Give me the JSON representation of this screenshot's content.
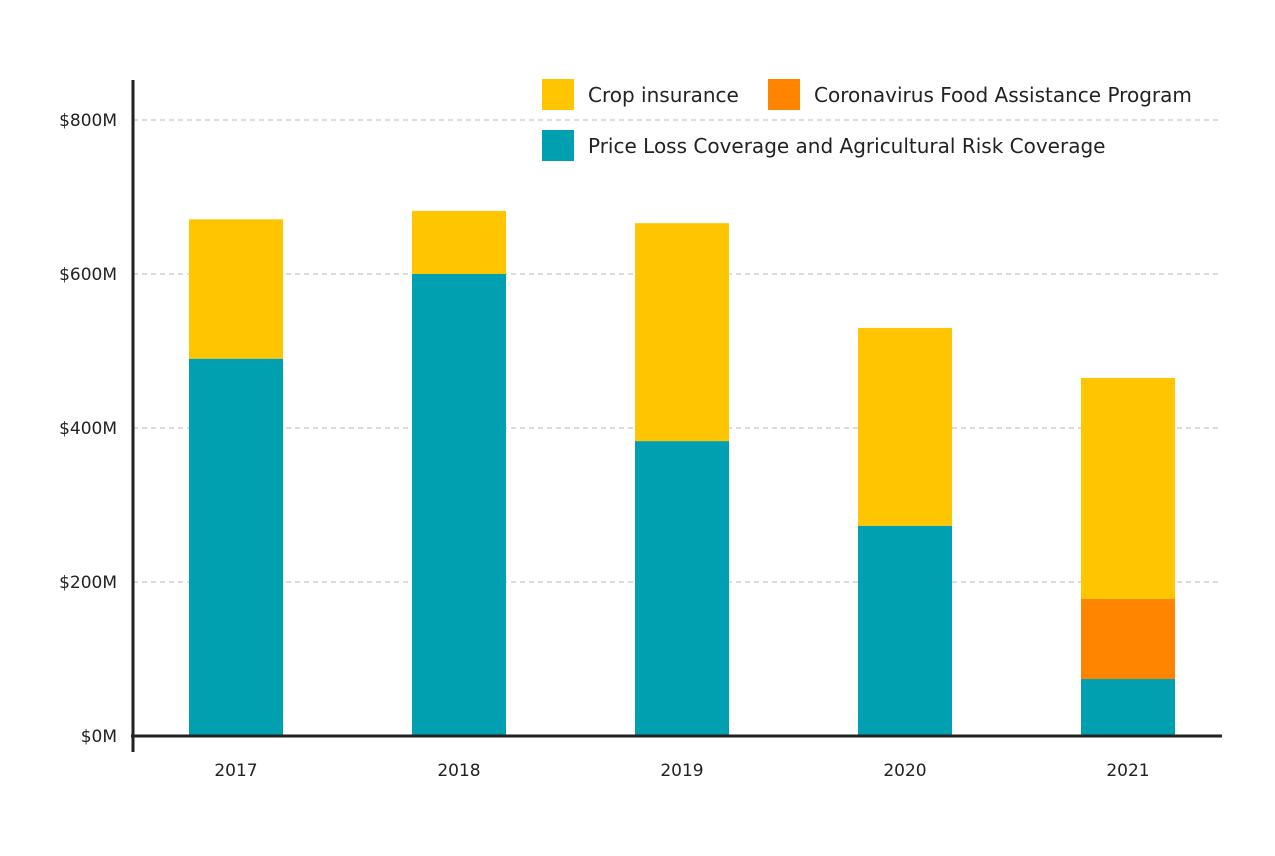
{
  "chart_data": {
    "type": "bar",
    "stacked": true,
    "title": "",
    "xlabel": "",
    "ylabel": "",
    "categories": [
      "2017",
      "2018",
      "2019",
      "2020",
      "2021"
    ],
    "series": [
      {
        "name": "Price Loss Coverage and Agricultural Risk Coverage",
        "color": "#00A0B0",
        "values": [
          490,
          600,
          383,
          273,
          74
        ]
      },
      {
        "name": "Coronavirus Food Assistance Program",
        "color": "#FF8500",
        "values": [
          0,
          0,
          0,
          0,
          104
        ]
      },
      {
        "name": "Crop insurance",
        "color": "#FFC500",
        "values": [
          181,
          82,
          283,
          257,
          287
        ]
      }
    ],
    "ylim": [
      0,
      800
    ],
    "yticks": [
      0,
      200,
      400,
      600,
      800
    ],
    "ytick_labels": [
      "$0M",
      "$200M",
      "$400M",
      "$600M",
      "$800M"
    ],
    "grid": true,
    "legend_placement": "top-right",
    "legend": [
      "Crop insurance",
      "Coronavirus Food Assistance Program",
      "Price Loss Coverage and Agricultural Risk Coverage"
    ]
  }
}
